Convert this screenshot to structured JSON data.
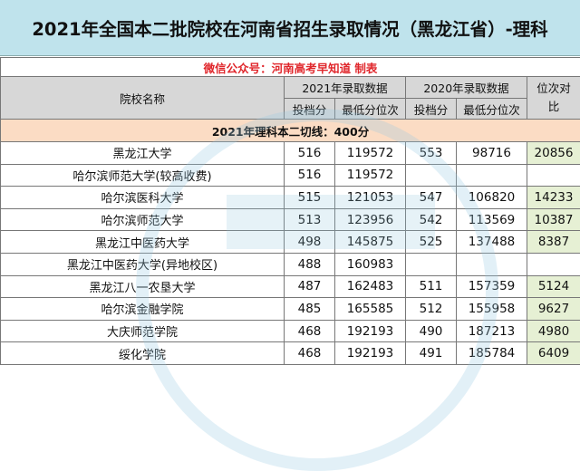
{
  "title": "2021年全国本二批院校在河南省招生录取情况（黑龙江省）-理科",
  "source_note": "微信公众号：河南高考早知道 制表",
  "headers": {
    "school_name": "院校名称",
    "year2021": "2021年录取数据",
    "year2020": "2020年录取数据",
    "rank_compare": "位次对比",
    "score": "投档分",
    "min_rank": "最低分位次"
  },
  "cutoff_line": "2021年理科本二切线：400分",
  "rows": [
    {
      "name": "黑龙江大学",
      "s21": "516",
      "r21": "119572",
      "s20": "553",
      "r20": "98716",
      "diff": "20856"
    },
    {
      "name": "哈尔滨师范大学(较高收费)",
      "s21": "516",
      "r21": "119572",
      "s20": "",
      "r20": "",
      "diff": ""
    },
    {
      "name": "哈尔滨医科大学",
      "s21": "515",
      "r21": "121053",
      "s20": "547",
      "r20": "106820",
      "diff": "14233"
    },
    {
      "name": "哈尔滨师范大学",
      "s21": "513",
      "r21": "123956",
      "s20": "542",
      "r20": "113569",
      "diff": "10387"
    },
    {
      "name": "黑龙江中医药大学",
      "s21": "498",
      "r21": "145875",
      "s20": "525",
      "r20": "137488",
      "diff": "8387"
    },
    {
      "name": "黑龙江中医药大学(异地校区)",
      "s21": "488",
      "r21": "160983",
      "s20": "",
      "r20": "",
      "diff": ""
    },
    {
      "name": "黑龙江八一农垦大学",
      "s21": "487",
      "r21": "162483",
      "s20": "511",
      "r20": "157359",
      "diff": "5124"
    },
    {
      "name": "哈尔滨金融学院",
      "s21": "485",
      "r21": "165585",
      "s20": "512",
      "r20": "155958",
      "diff": "9627"
    },
    {
      "name": "大庆师范学院",
      "s21": "468",
      "r21": "192193",
      "s20": "490",
      "r20": "187213",
      "diff": "4980"
    },
    {
      "name": "绥化学院",
      "s21": "468",
      "r21": "192193",
      "s20": "491",
      "r20": "185784",
      "diff": "6409"
    }
  ]
}
